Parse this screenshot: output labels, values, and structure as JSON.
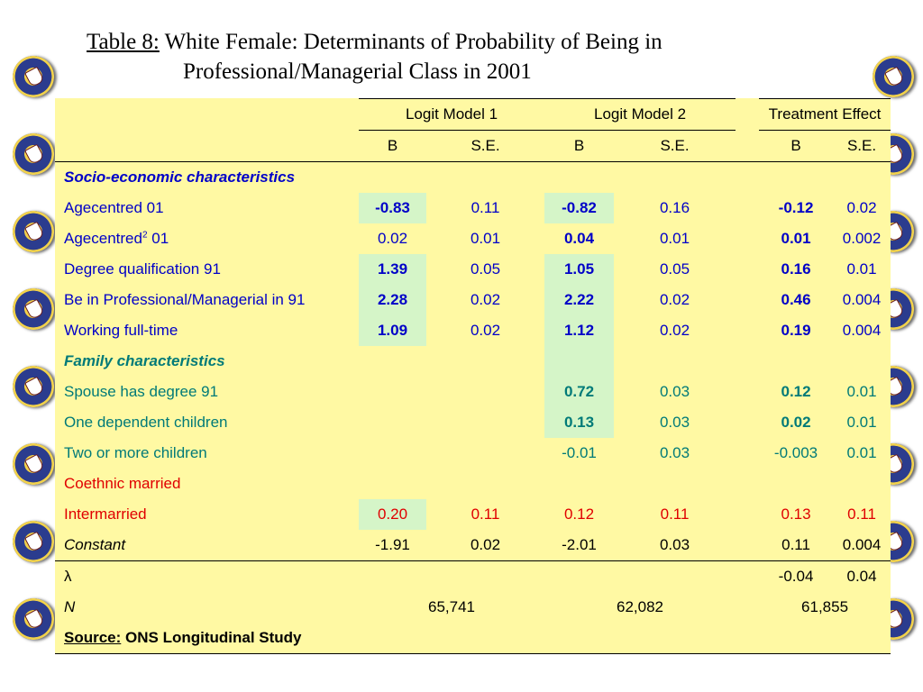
{
  "title": {
    "label": "Table 8:",
    "line1": "White Female: Determinants of  Probability of Being in",
    "line2": "Professional/Managerial Class in 2001"
  },
  "header": {
    "model1": "Logit Model 1",
    "model2": "Logit Model 2",
    "treatment": "Treatment Effect",
    "b": "B",
    "se": "S.E."
  },
  "sections": {
    "socio": "Socio-economic characteristics",
    "family": "Family characteristics"
  },
  "rows": {
    "age": {
      "label": "Agecentred 01",
      "m1b": "-0.83",
      "m1se": "0.11",
      "m2b": "-0.82",
      "m2se": "0.16",
      "teb": "-0.12",
      "tese": "0.02"
    },
    "age2": {
      "label_pre": "Agecentred",
      "label_sup": "2",
      "label_post": " 01",
      "m1b": "0.02",
      "m1se": "0.01",
      "m2b": "0.04",
      "m2se": "0.01",
      "teb": "0.01",
      "tese": "0.002"
    },
    "degree": {
      "label": "Degree qualification 91",
      "m1b": "1.39",
      "m1se": "0.05",
      "m2b": "1.05",
      "m2se": "0.05",
      "teb": "0.16",
      "tese": "0.01"
    },
    "prof": {
      "label": "Be in Professional/Managerial in 91",
      "m1b": "2.28",
      "m1se": "0.02",
      "m2b": "2.22",
      "m2se": "0.02",
      "teb": "0.46",
      "tese": "0.004"
    },
    "fulltime": {
      "label": "Working full-time",
      "m1b": "1.09",
      "m1se": "0.02",
      "m2b": "1.12",
      "m2se": "0.02",
      "teb": "0.19",
      "tese": "0.004"
    },
    "spouse": {
      "label": "Spouse has degree 91",
      "m2b": "0.72",
      "m2se": "0.03",
      "teb": "0.12",
      "tese": "0.01"
    },
    "onechild": {
      "label": "One dependent children",
      "m2b": "0.13",
      "m2se": "0.03",
      "teb": "0.02",
      "tese": "0.01"
    },
    "twochild": {
      "label": "Two or more children",
      "m2b": "-0.01",
      "m2se": "0.03",
      "teb": "-0.003",
      "tese": "0.01"
    },
    "coethnic": {
      "label": "Coethnic married"
    },
    "intermarried": {
      "label": "Intermarried",
      "m1b": "0.20",
      "m1se": "0.11",
      "m2b": "0.12",
      "m2se": "0.11",
      "teb": "0.13",
      "tese": "0.11"
    },
    "constant": {
      "label": "Constant",
      "m1b": "-1.91",
      "m1se": "0.02",
      "m2b": "-2.01",
      "m2se": "0.03",
      "teb": "0.11",
      "tese": "0.004"
    },
    "lambda": {
      "label": "λ",
      "teb": "-0.04",
      "tese": "0.04"
    },
    "n": {
      "label": "N",
      "m1": "65,741",
      "m2": "62,082",
      "te": "61,855"
    }
  },
  "source": {
    "label": "Source:",
    "text": " ONS Longitudinal Study"
  },
  "decor": {
    "crest_icon": "university-crest-icon"
  }
}
